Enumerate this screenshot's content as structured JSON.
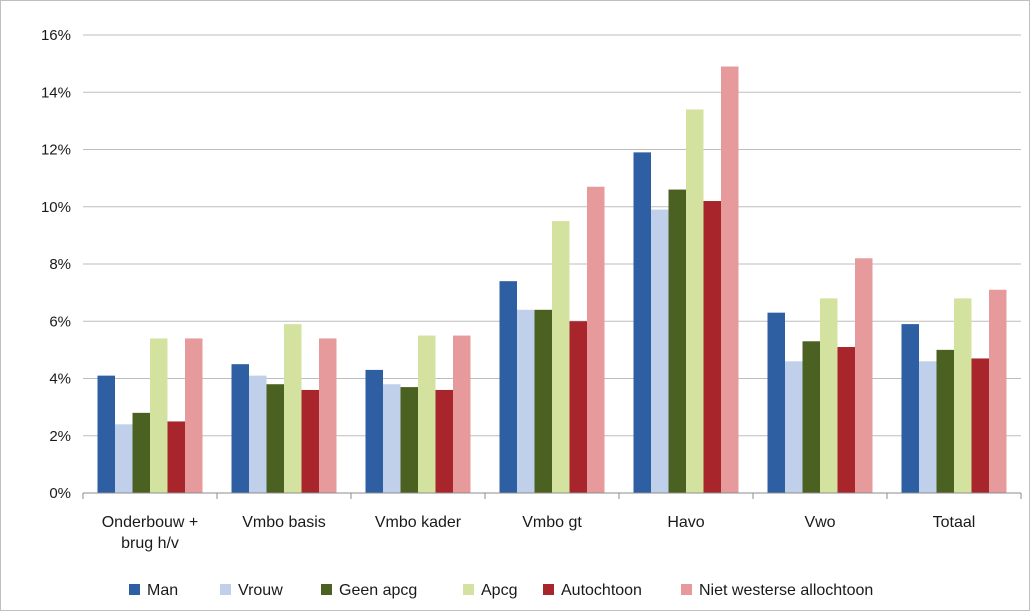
{
  "chart_data": {
    "type": "bar",
    "title": "",
    "xlabel": "",
    "ylabel": "",
    "ylim": [
      0,
      16
    ],
    "y_unit": "%",
    "y_ticks": [
      "0%",
      "2%",
      "4%",
      "6%",
      "8%",
      "10%",
      "12%",
      "14%",
      "16%"
    ],
    "grid": "horizontal",
    "legend_position": "bottom",
    "categories": [
      [
        "Onderbouw +",
        "brug h/v"
      ],
      [
        "Vmbo basis"
      ],
      [
        "Vmbo kader"
      ],
      [
        "Vmbo gt"
      ],
      [
        "Havo"
      ],
      [
        "Vwo"
      ],
      [
        "Totaal"
      ]
    ],
    "series": [
      {
        "name": "Man",
        "color": "#2e5fa3",
        "values": [
          4.1,
          4.5,
          4.3,
          7.4,
          11.9,
          6.3,
          5.9
        ]
      },
      {
        "name": "Vrouw",
        "color": "#c0d0ea",
        "values": [
          2.4,
          4.1,
          3.8,
          6.4,
          9.9,
          4.6,
          4.6
        ]
      },
      {
        "name": "Geen apcg",
        "color": "#4b6122",
        "values": [
          2.8,
          3.8,
          3.7,
          6.4,
          10.6,
          5.3,
          5.0
        ]
      },
      {
        "name": "Apcg",
        "color": "#d3e39f",
        "values": [
          5.4,
          5.9,
          5.5,
          9.5,
          13.4,
          6.8,
          6.8
        ]
      },
      {
        "name": "Autochtoon",
        "color": "#a8252b",
        "values": [
          2.5,
          3.6,
          3.6,
          6.0,
          10.2,
          5.1,
          4.7
        ]
      },
      {
        "name": "Niet westerse allochtoon",
        "color": "#e79a9c",
        "values": [
          5.4,
          5.4,
          5.5,
          10.7,
          14.9,
          8.2,
          7.1
        ]
      }
    ]
  }
}
